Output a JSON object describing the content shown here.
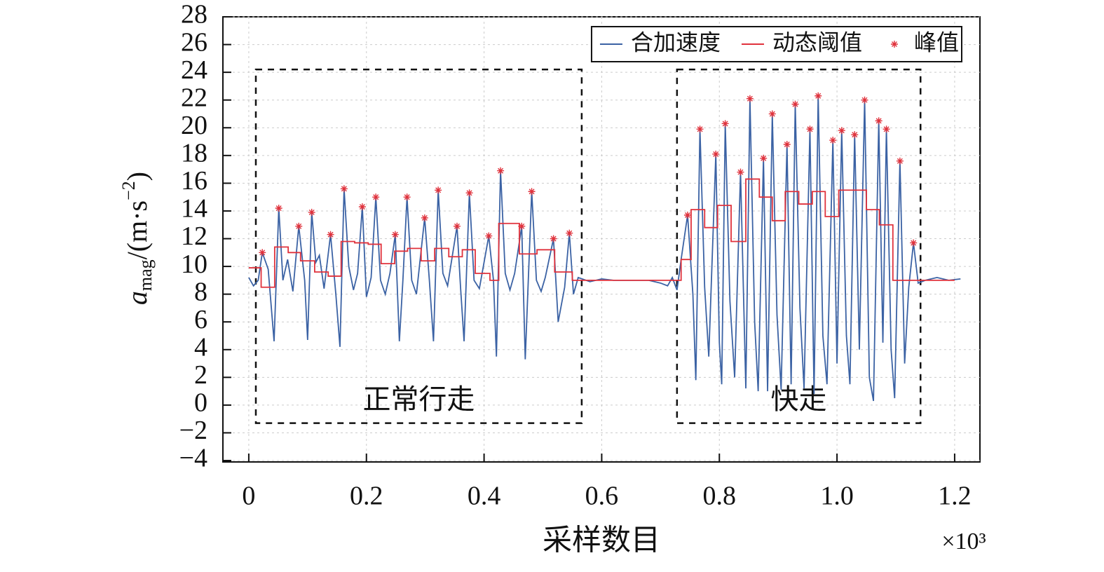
{
  "chart_data": {
    "type": "line",
    "x_label": "采样数目",
    "x_multiplier": "×10³",
    "y_label_parts": [
      "a",
      "mag",
      "/(m·s",
      "−2",
      ")"
    ],
    "xlim": [
      -0.044,
      1.243
    ],
    "ylim": [
      -4.1,
      28
    ],
    "xticks": [
      0,
      0.2,
      0.4,
      0.6,
      0.8,
      {
        "value": 1,
        "label": "1.0"
      },
      1.2
    ],
    "yticks": [
      {
        "value": -4,
        "label": "−4"
      },
      {
        "value": -2,
        "label": "−2"
      },
      0,
      2,
      4,
      6,
      8,
      10,
      12,
      14,
      16,
      18,
      20,
      22,
      24,
      26,
      28
    ],
    "grid": true,
    "legend": "upper right",
    "series": [
      {
        "name": "合加速度",
        "type": "line",
        "color": "#3b62a4",
        "x": [
          0,
          0.008,
          0.016,
          0.023,
          0.033,
          0.043,
          0.051,
          0.058,
          0.066,
          0.075,
          0.085,
          0.095,
          0.1,
          0.107,
          0.114,
          0.12,
          0.128,
          0.139,
          0.148,
          0.155,
          0.162,
          0.17,
          0.178,
          0.185,
          0.193,
          0.2,
          0.208,
          0.216,
          0.224,
          0.232,
          0.24,
          0.249,
          0.256,
          0.262,
          0.269,
          0.277,
          0.285,
          0.299,
          0.307,
          0.314,
          0.322,
          0.33,
          0.338,
          0.354,
          0.36,
          0.366,
          0.375,
          0.383,
          0.392,
          0.408,
          0.416,
          0.421,
          0.428,
          0.436,
          0.444,
          0.452,
          0.464,
          0.47,
          0.481,
          0.489,
          0.497,
          0.504,
          0.518,
          0.526,
          0.537,
          0.545,
          0.552,
          0.56,
          0.58,
          0.6,
          0.62,
          0.65,
          0.68,
          0.7,
          0.712,
          0.72,
          0.728,
          0.735,
          0.746,
          0.755,
          0.76,
          0.767,
          0.775,
          0.782,
          0.794,
          0.8,
          0.804,
          0.81,
          0.818,
          0.826,
          0.836,
          0.845,
          0.852,
          0.86,
          0.866,
          0.875,
          0.882,
          0.89,
          0.898,
          0.905,
          0.915,
          0.922,
          0.929,
          0.937,
          0.944,
          0.954,
          0.961,
          0.968,
          0.976,
          0.983,
          0.993,
          1.0,
          1.008,
          1.016,
          1.022,
          1.03,
          1.038,
          1.047,
          1.055,
          1.062,
          1.071,
          1.078,
          1.084,
          1.092,
          1.098,
          1.107,
          1.115,
          1.122,
          1.13,
          1.138,
          1.15,
          1.17,
          1.19,
          1.21
        ],
        "values": [
          9.2,
          8.6,
          9.0,
          11.0,
          9.8,
          4.6,
          14.2,
          9.0,
          10.5,
          8.2,
          12.9,
          9.0,
          4.7,
          13.9,
          10.3,
          10.8,
          8.4,
          12.3,
          8.0,
          4.2,
          15.6,
          10.0,
          8.3,
          9.5,
          14.3,
          7.8,
          9.2,
          15.0,
          9.0,
          8.0,
          9.5,
          12.3,
          4.6,
          9.0,
          15.0,
          9.0,
          8.0,
          13.5,
          9.0,
          4.6,
          15.5,
          9.5,
          8.6,
          12.9,
          8.5,
          4.6,
          15.3,
          9.0,
          8.4,
          12.2,
          9.0,
          3.5,
          16.9,
          9.5,
          8.3,
          9.5,
          12.9,
          3.3,
          15.4,
          9.0,
          8.2,
          9.2,
          12.0,
          6.0,
          8.5,
          12.4,
          8.0,
          9.2,
          8.9,
          9.1,
          9.0,
          9.0,
          9.0,
          8.8,
          8.6,
          9.2,
          8.3,
          10.5,
          13.7,
          8.0,
          1.8,
          19.9,
          8.5,
          3.5,
          18.1,
          4.5,
          1.5,
          20.3,
          7.5,
          2.0,
          16.8,
          1.2,
          22.1,
          6.0,
          1.0,
          17.8,
          1.0,
          21.0,
          6.5,
          1.1,
          18.8,
          1.5,
          21.7,
          7.0,
          1.2,
          19.9,
          0.8,
          22.3,
          5.0,
          1.5,
          19.1,
          3.0,
          19.8,
          5.0,
          1.5,
          19.5,
          4.0,
          22.0,
          2.0,
          0.3,
          20.5,
          4.5,
          19.9,
          4.0,
          0.5,
          17.6,
          3.0,
          8.5,
          11.7,
          8.8,
          9.0,
          9.2,
          9.0,
          9.1
        ]
      },
      {
        "name": "动态阈值",
        "type": "step",
        "color": "#e0323c",
        "x": [
          0,
          0.021,
          0.044,
          0.067,
          0.088,
          0.112,
          0.135,
          0.157,
          0.18,
          0.203,
          0.225,
          0.248,
          0.27,
          0.293,
          0.316,
          0.34,
          0.363,
          0.385,
          0.41,
          0.425,
          0.46,
          0.49,
          0.52,
          0.55,
          0.735,
          0.752,
          0.775,
          0.797,
          0.82,
          0.845,
          0.868,
          0.89,
          0.912,
          0.935,
          0.958,
          0.98,
          1.003,
          1.028,
          1.05,
          1.072,
          1.095,
          1.2
        ],
        "values": [
          9.9,
          8.5,
          11.4,
          11.0,
          10.4,
          9.6,
          9.3,
          11.8,
          11.7,
          11.6,
          10.2,
          11.1,
          11.3,
          10.4,
          11.3,
          10.7,
          11.2,
          9.5,
          9.0,
          13.1,
          10.9,
          11.2,
          9.6,
          9.0,
          10.5,
          14.1,
          12.8,
          14.4,
          11.8,
          16.3,
          15.0,
          13.3,
          15.4,
          14.5,
          15.4,
          13.6,
          15.5,
          15.5,
          14.1,
          13.0,
          9.0,
          9.0
        ]
      },
      {
        "name": "峰值",
        "type": "marker",
        "color": "#e0323c",
        "x": [
          0.023,
          0.051,
          0.085,
          0.107,
          0.139,
          0.162,
          0.193,
          0.216,
          0.249,
          0.269,
          0.299,
          0.322,
          0.354,
          0.375,
          0.408,
          0.428,
          0.464,
          0.481,
          0.518,
          0.545,
          0.746,
          0.767,
          0.794,
          0.81,
          0.836,
          0.852,
          0.875,
          0.89,
          0.915,
          0.929,
          0.954,
          0.968,
          0.993,
          1.008,
          1.03,
          1.047,
          1.071,
          1.084,
          1.107,
          1.13
        ],
        "values": [
          11.0,
          14.2,
          12.9,
          13.9,
          12.3,
          15.6,
          14.3,
          15.0,
          12.3,
          15.0,
          13.5,
          15.5,
          12.9,
          15.3,
          12.2,
          16.9,
          12.9,
          15.4,
          12.0,
          12.4,
          13.7,
          19.9,
          18.1,
          20.3,
          16.8,
          22.1,
          17.8,
          21.0,
          18.8,
          21.7,
          19.9,
          22.3,
          19.1,
          19.8,
          19.5,
          22.0,
          20.5,
          19.9,
          17.6,
          11.7
        ]
      }
    ],
    "annotations": [
      {
        "text": "正常行走",
        "xrange": [
          0.012,
          0.566
        ],
        "yrange": [
          -1.3,
          24.2
        ]
      },
      {
        "text": "快走",
        "xrange": [
          0.728,
          1.142
        ],
        "yrange": [
          -1.3,
          24.2
        ]
      }
    ]
  }
}
